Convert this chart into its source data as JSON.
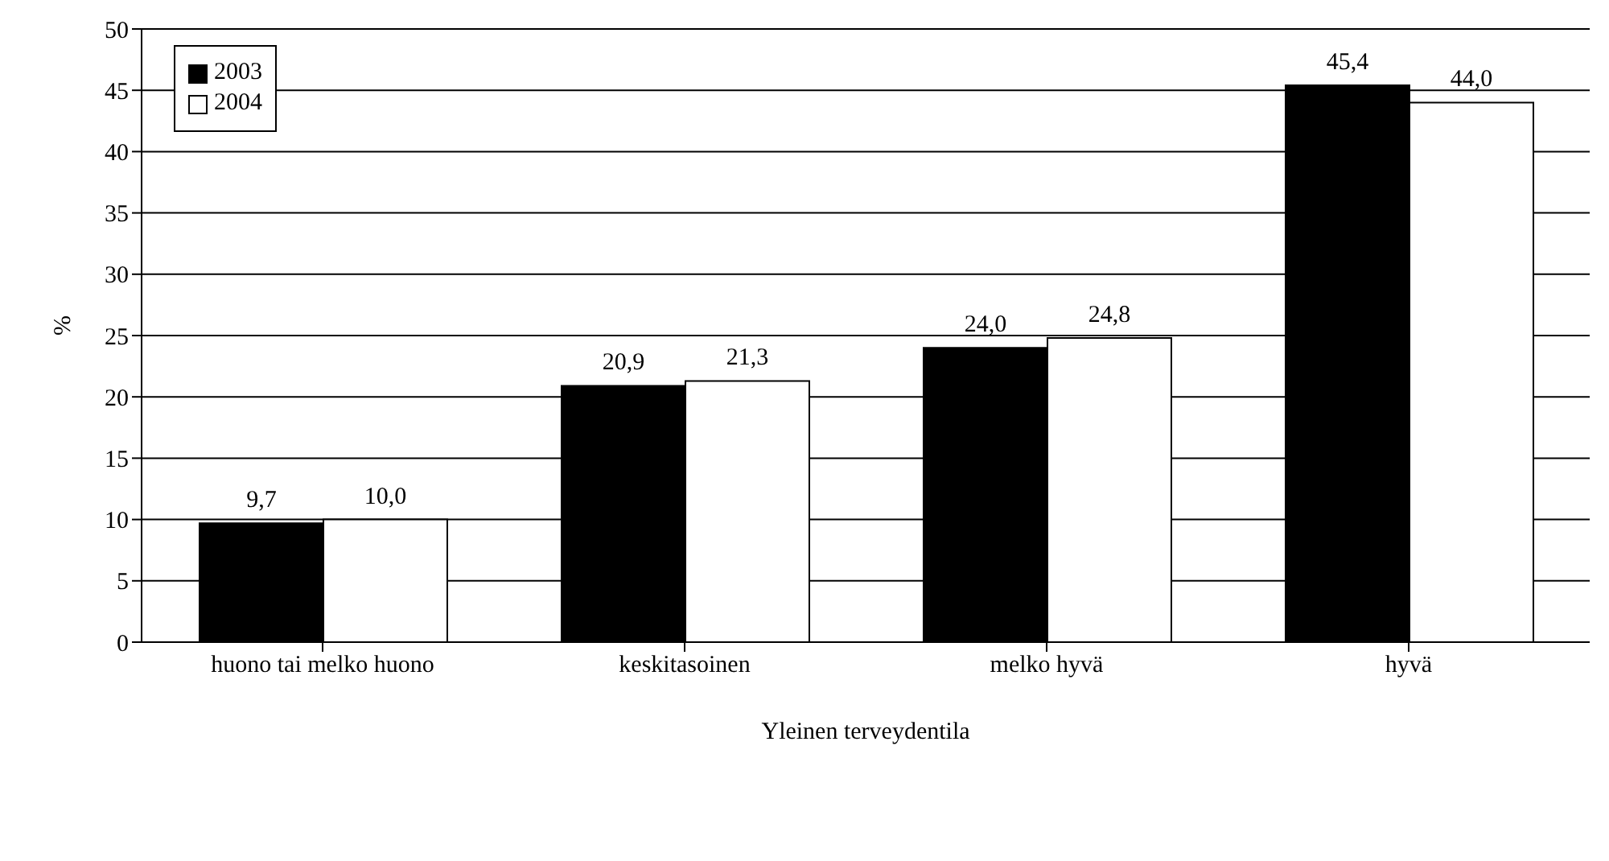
{
  "chart_data": {
    "type": "bar",
    "xlabel": "Yleinen terveydentila",
    "ylabel": "%",
    "categories": [
      "huono tai melko huono",
      "keskitasoinen",
      "melko hyvä",
      "hyvä"
    ],
    "series": [
      {
        "name": "2003",
        "color": "#000000",
        "values": [
          9.7,
          20.9,
          24.0,
          45.4
        ],
        "value_labels": [
          "9,7",
          "20,9",
          "24,0",
          "45,4"
        ]
      },
      {
        "name": "2004",
        "color": "#ffffff",
        "values": [
          10.0,
          21.3,
          24.8,
          44.0
        ],
        "value_labels": [
          "10,0",
          "21,3",
          "24,8",
          "44,0"
        ]
      }
    ],
    "ylim": [
      0,
      50
    ],
    "yticks": [
      0,
      5,
      10,
      15,
      20,
      25,
      30,
      35,
      40,
      45,
      50
    ],
    "grid": "y",
    "legend": "top left"
  }
}
